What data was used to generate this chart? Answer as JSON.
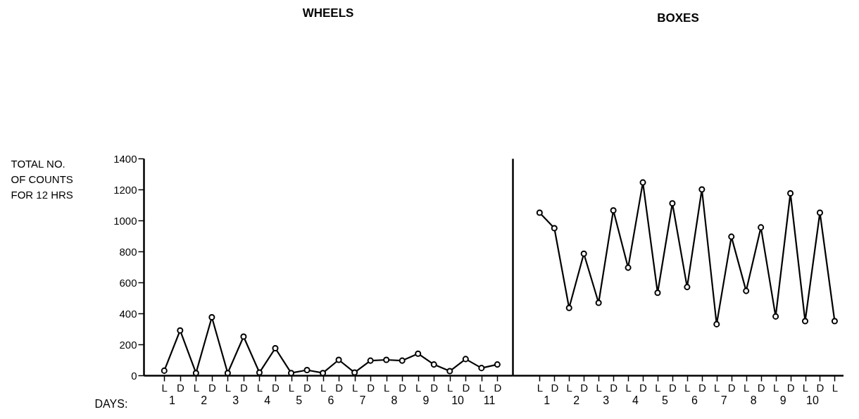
{
  "chart_data": [
    {
      "type": "line",
      "title": "WHEELS",
      "ylabel": "TOTAL NO. OF COUNTS FOR 12 HRS",
      "xlabel": "DAYS:",
      "categories": [
        "L",
        "D",
        "L",
        "D",
        "L",
        "D",
        "L",
        "D",
        "L",
        "D",
        "L",
        "D",
        "L",
        "D",
        "L",
        "D",
        "L",
        "D",
        "L",
        "D",
        "L",
        "D"
      ],
      "series": [
        {
          "color": "#000000",
          "values": [
            30,
            290,
            15,
            375,
            15,
            250,
            18,
            175,
            15,
            34,
            15,
            100,
            18,
            95,
            100,
            95,
            140,
            70,
            27,
            105,
            47,
            70
          ]
        }
      ],
      "annotations": [
        "1",
        "2",
        "3",
        "4",
        "5",
        "6",
        "7",
        "8",
        "9",
        "10",
        "11"
      ],
      "ylim": [
        0,
        1400
      ],
      "yticks": [
        0,
        200,
        400,
        600,
        800,
        1000,
        1200,
        1400
      ],
      "marker": "circle",
      "line_style": "solid",
      "grid": false
    },
    {
      "type": "line",
      "title": "BOXES",
      "categories": [
        "L",
        "D",
        "L",
        "D",
        "L",
        "D",
        "L",
        "D",
        "L",
        "D",
        "L",
        "D",
        "L",
        "D",
        "L",
        "D",
        "L",
        "D",
        "L",
        "D",
        "L"
      ],
      "series": [
        {
          "color": "#000000",
          "values": [
            1050,
            950,
            435,
            785,
            468,
            1065,
            695,
            1245,
            533,
            1110,
            570,
            1200,
            330,
            895,
            545,
            955,
            380,
            1175,
            350,
            1050,
            350
          ]
        }
      ],
      "annotations": [
        "1",
        "2",
        "3",
        "4",
        "5",
        "6",
        "7",
        "8",
        "9",
        "10"
      ],
      "ylim": [
        0,
        1400
      ],
      "yticks": [
        0,
        200,
        400,
        600,
        800,
        1000,
        1200,
        1400
      ],
      "tick_labels": "x",
      "marker": "circle",
      "line_style": "solid",
      "grid": false
    }
  ]
}
